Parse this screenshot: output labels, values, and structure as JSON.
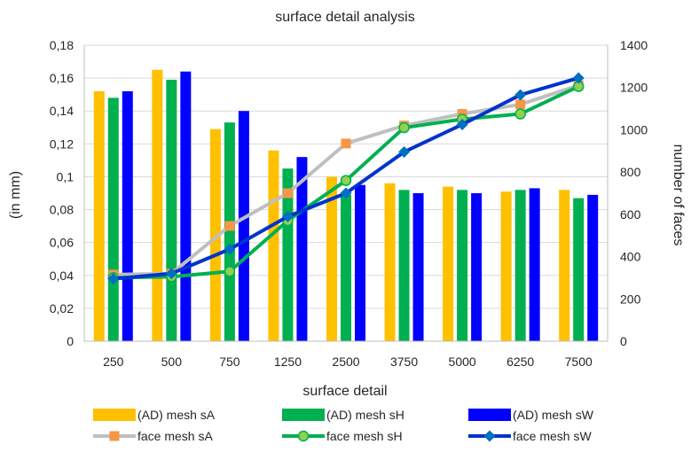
{
  "chart_data": {
    "type": "bar",
    "title": "surface detail analysis",
    "xlabel": "surface detail",
    "ylabel": "(in mm)",
    "y2label": "number of faces",
    "categories": [
      "250",
      "500",
      "750",
      "1250",
      "2500",
      "3750",
      "5000",
      "6250",
      "7500"
    ],
    "ylim": [
      0,
      0.18
    ],
    "y_ticks": [
      "0",
      "0,02",
      "0,04",
      "0,06",
      "0,08",
      "0,1",
      "0,12",
      "0,14",
      "0,16",
      "0,18"
    ],
    "y2lim": [
      0,
      1400
    ],
    "y2_ticks": [
      "0",
      "200",
      "400",
      "600",
      "800",
      "1000",
      "1200",
      "1400"
    ],
    "grid": "horizontal",
    "legend_position": "bottom",
    "bar_series": [
      {
        "name": "(AD) mesh sA",
        "color": "#FFC000",
        "values": [
          0.152,
          0.165,
          0.129,
          0.116,
          0.1,
          0.096,
          0.094,
          0.091,
          0.092
        ]
      },
      {
        "name": "(AD) mesh sH",
        "color": "#00B050",
        "values": [
          0.148,
          0.159,
          0.133,
          0.105,
          0.089,
          0.092,
          0.092,
          0.092,
          0.087
        ]
      },
      {
        "name": "(AD) mesh sW",
        "color": "#0000FF",
        "values": [
          0.152,
          0.164,
          0.14,
          0.112,
          0.095,
          0.09,
          0.09,
          0.093,
          0.089
        ]
      }
    ],
    "line_series": [
      {
        "name": "face mesh sA",
        "axis": "secondary",
        "line_color": "#BFBFBF",
        "marker_color": "#F79646",
        "marker": "square",
        "values": [
          315,
          320,
          545,
          700,
          935,
          1020,
          1075,
          1120,
          1210
        ]
      },
      {
        "name": "face mesh sH",
        "axis": "secondary",
        "line_color": "#00B050",
        "marker_color": "#92D050",
        "marker": "circle",
        "values": [
          300,
          305,
          330,
          570,
          760,
          1010,
          1050,
          1075,
          1205
        ]
      },
      {
        "name": "face mesh sW",
        "axis": "secondary",
        "line_color": "#0033CC",
        "marker_color": "#0070C0",
        "marker": "diamond",
        "values": [
          295,
          320,
          435,
          590,
          700,
          895,
          1025,
          1165,
          1245
        ]
      }
    ]
  }
}
